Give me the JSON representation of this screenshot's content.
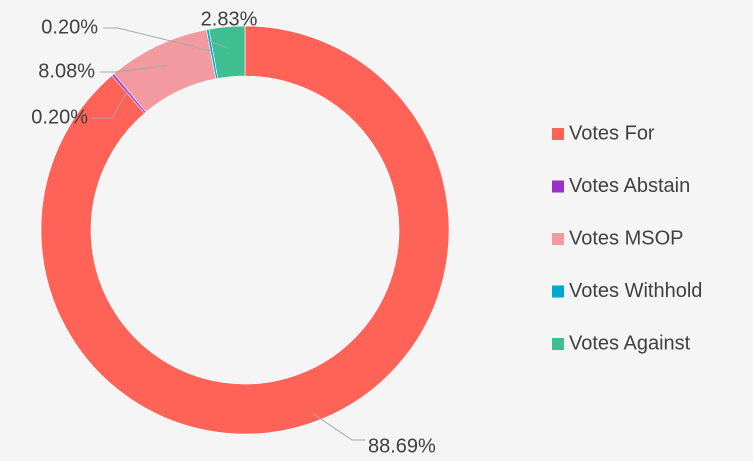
{
  "chart_data": {
    "type": "donut",
    "categories": [
      "Votes For",
      "Votes Abstain",
      "Votes MSOP",
      "Votes Withhold",
      "Votes Against"
    ],
    "values": [
      88.69,
      0.2,
      8.08,
      0.2,
      2.83
    ],
    "value_labels": [
      "88.69%",
      "0.20%",
      "8.08%",
      "0.20%",
      "2.83%"
    ],
    "colors": [
      "#ff6358",
      "#9b30c9",
      "#f29aa0",
      "#00a7cf",
      "#3fbf91"
    ],
    "legend": "right"
  }
}
